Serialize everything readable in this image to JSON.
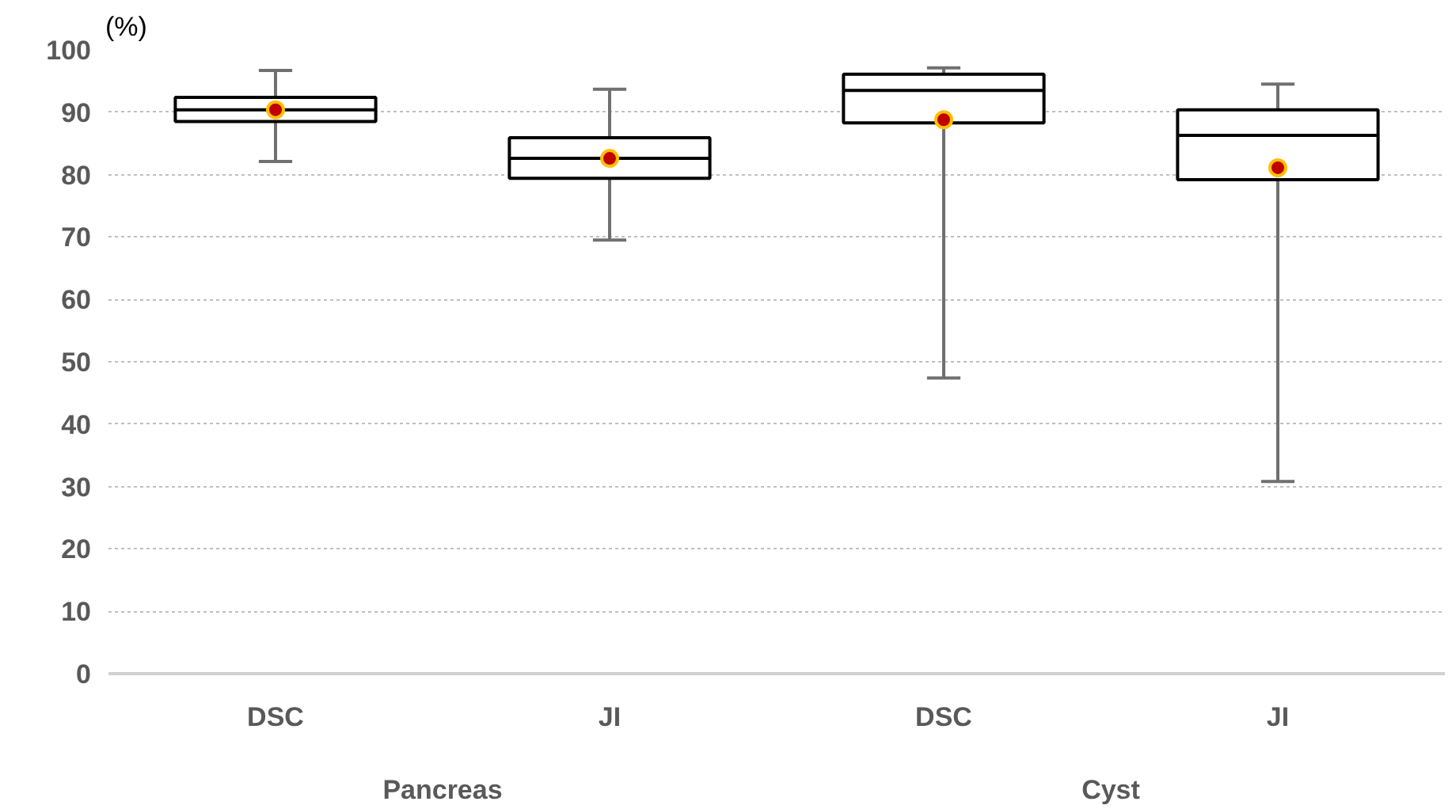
{
  "chart_data": {
    "type": "box",
    "ylabel": "(%)",
    "categories": [
      "DSC",
      "JI",
      "DSC",
      "JI"
    ],
    "annotations": [
      "Pancreas",
      "Cyst"
    ],
    "boxes": [
      {
        "low": 82.1,
        "q1": 88.5,
        "median": 90.4,
        "q3": 92.4,
        "high": 96.7,
        "mean": 90.4
      },
      {
        "low": 69.5,
        "q1": 79.4,
        "median": 82.6,
        "q3": 85.9,
        "high": 93.7,
        "mean": 82.6
      },
      {
        "low": 47.4,
        "q1": 88.3,
        "median": 93.5,
        "q3": 96.1,
        "high": 97.1,
        "mean": 88.8
      },
      {
        "low": 30.8,
        "q1": 79.2,
        "median": 86.3,
        "q3": 90.4,
        "high": 94.5,
        "mean": 81.1
      }
    ],
    "ylim": [
      0,
      100
    ],
    "yticks": [
      0,
      10,
      20,
      30,
      40,
      50,
      60,
      70,
      80,
      90,
      100
    ],
    "grid": "y"
  }
}
